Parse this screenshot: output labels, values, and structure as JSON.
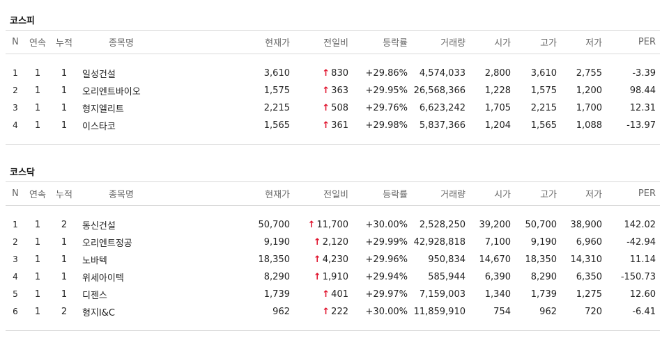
{
  "colors": {
    "up": "#e0112b",
    "border": "#d9d9d9",
    "header_text": "#666666"
  },
  "columns": [
    "N",
    "연속",
    "누적",
    "종목명",
    "현재가",
    "전일비",
    "등락률",
    "거래량",
    "시가",
    "고가",
    "저가",
    "PER"
  ],
  "icons": {
    "up_arrow": "up-arrow-icon"
  },
  "kospi": {
    "title": "코스피",
    "rows": [
      {
        "n": "1",
        "consecutive": "1",
        "cumulative": "1",
        "name": "일성건설",
        "price": "3,610",
        "diff": "830",
        "rate": "+29.86%",
        "volume": "4,574,033",
        "open": "2,800",
        "high": "3,610",
        "low": "2,755",
        "per": "-3.39"
      },
      {
        "n": "2",
        "consecutive": "1",
        "cumulative": "1",
        "name": "오리엔트바이오",
        "price": "1,575",
        "diff": "363",
        "rate": "+29.95%",
        "volume": "26,568,366",
        "open": "1,228",
        "high": "1,575",
        "low": "1,200",
        "per": "98.44"
      },
      {
        "n": "3",
        "consecutive": "1",
        "cumulative": "1",
        "name": "형지엘리트",
        "price": "2,215",
        "diff": "508",
        "rate": "+29.76%",
        "volume": "6,623,242",
        "open": "1,705",
        "high": "2,215",
        "low": "1,700",
        "per": "12.31"
      },
      {
        "n": "4",
        "consecutive": "1",
        "cumulative": "1",
        "name": "이스타코",
        "price": "1,565",
        "diff": "361",
        "rate": "+29.98%",
        "volume": "5,837,366",
        "open": "1,204",
        "high": "1,565",
        "low": "1,088",
        "per": "-13.97"
      }
    ]
  },
  "kosdaq": {
    "title": "코스닥",
    "rows": [
      {
        "n": "1",
        "consecutive": "1",
        "cumulative": "2",
        "name": "동신건설",
        "price": "50,700",
        "diff": "11,700",
        "rate": "+30.00%",
        "volume": "2,528,250",
        "open": "39,200",
        "high": "50,700",
        "low": "38,900",
        "per": "142.02"
      },
      {
        "n": "2",
        "consecutive": "1",
        "cumulative": "1",
        "name": "오리엔트정공",
        "price": "9,190",
        "diff": "2,120",
        "rate": "+29.99%",
        "volume": "42,928,818",
        "open": "7,100",
        "high": "9,190",
        "low": "6,960",
        "per": "-42.94"
      },
      {
        "n": "3",
        "consecutive": "1",
        "cumulative": "1",
        "name": "노바텍",
        "price": "18,350",
        "diff": "4,230",
        "rate": "+29.96%",
        "volume": "950,834",
        "open": "14,670",
        "high": "18,350",
        "low": "14,310",
        "per": "11.14"
      },
      {
        "n": "4",
        "consecutive": "1",
        "cumulative": "1",
        "name": "위세아이텍",
        "price": "8,290",
        "diff": "1,910",
        "rate": "+29.94%",
        "volume": "585,944",
        "open": "6,390",
        "high": "8,290",
        "low": "6,350",
        "per": "-150.73"
      },
      {
        "n": "5",
        "consecutive": "1",
        "cumulative": "1",
        "name": "디젠스",
        "price": "1,739",
        "diff": "401",
        "rate": "+29.97%",
        "volume": "7,159,003",
        "open": "1,340",
        "high": "1,739",
        "low": "1,275",
        "per": "12.60"
      },
      {
        "n": "6",
        "consecutive": "1",
        "cumulative": "2",
        "name": "형지I&C",
        "price": "962",
        "diff": "222",
        "rate": "+30.00%",
        "volume": "11,859,910",
        "open": "754",
        "high": "962",
        "low": "720",
        "per": "-6.41"
      }
    ]
  }
}
